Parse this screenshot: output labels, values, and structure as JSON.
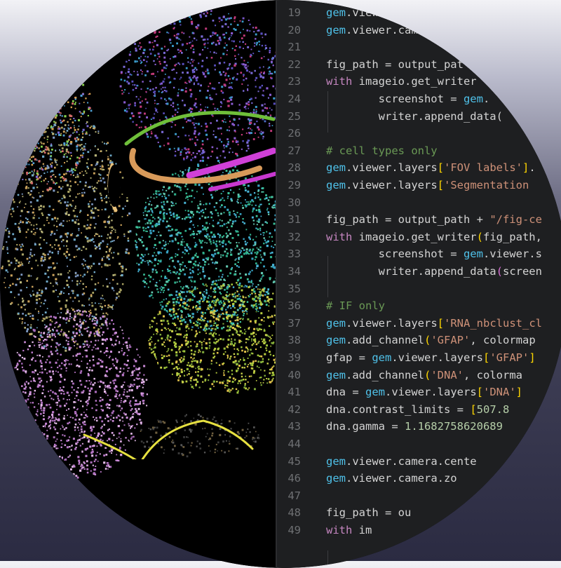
{
  "code_lines": [
    {
      "n": "19",
      "tokens": [
        {
          "t": "gem",
          "c": "tok-obj"
        },
        {
          "t": ".viewe",
          "c": "tok-plain"
        }
      ]
    },
    {
      "n": "20",
      "tokens": [
        {
          "t": "gem",
          "c": "tok-obj"
        },
        {
          "t": ".viewer.cam",
          "c": "tok-plain"
        }
      ]
    },
    {
      "n": "21",
      "tokens": []
    },
    {
      "n": "22",
      "tokens": [
        {
          "t": "fig_path",
          "c": "tok-plain"
        },
        {
          "t": " = ",
          "c": "tok-plain"
        },
        {
          "t": "output_pat",
          "c": "tok-plain"
        }
      ]
    },
    {
      "n": "23",
      "tokens": [
        {
          "t": "with",
          "c": "tok-kw"
        },
        {
          "t": " imageio.get_writer",
          "c": "tok-plain"
        }
      ]
    },
    {
      "n": "24",
      "tokens": [
        {
          "t": "        screenshot = ",
          "c": "tok-plain"
        },
        {
          "t": "gem",
          "c": "tok-obj"
        },
        {
          "t": ".",
          "c": "tok-plain"
        }
      ]
    },
    {
      "n": "25",
      "tokens": [
        {
          "t": "        writer.append_data(",
          "c": "tok-plain"
        }
      ]
    },
    {
      "n": "26",
      "tokens": []
    },
    {
      "n": "27",
      "tokens": [
        {
          "t": "# cell types only",
          "c": "tok-cmt"
        }
      ]
    },
    {
      "n": "28",
      "tokens": [
        {
          "t": "gem",
          "c": "tok-obj"
        },
        {
          "t": ".viewer.layers",
          "c": "tok-plain"
        },
        {
          "t": "[",
          "c": "tok-br"
        },
        {
          "t": "'FOV labels'",
          "c": "tok-str"
        },
        {
          "t": "]",
          "c": "tok-br"
        },
        {
          "t": ".",
          "c": "tok-plain"
        }
      ]
    },
    {
      "n": "29",
      "tokens": [
        {
          "t": "gem",
          "c": "tok-obj"
        },
        {
          "t": ".viewer.layers",
          "c": "tok-plain"
        },
        {
          "t": "[",
          "c": "tok-br"
        },
        {
          "t": "'Segmentation",
          "c": "tok-str"
        }
      ]
    },
    {
      "n": "30",
      "tokens": []
    },
    {
      "n": "31",
      "tokens": [
        {
          "t": "fig_path",
          "c": "tok-plain"
        },
        {
          "t": " = ",
          "c": "tok-plain"
        },
        {
          "t": "output_path + ",
          "c": "tok-plain"
        },
        {
          "t": "\"/fig-ce",
          "c": "tok-str"
        }
      ]
    },
    {
      "n": "32",
      "tokens": [
        {
          "t": "with",
          "c": "tok-kw"
        },
        {
          "t": " imageio.get_writer",
          "c": "tok-plain"
        },
        {
          "t": "(",
          "c": "tok-br"
        },
        {
          "t": "fig_path,",
          "c": "tok-plain"
        }
      ]
    },
    {
      "n": "33",
      "tokens": [
        {
          "t": "        screenshot = ",
          "c": "tok-plain"
        },
        {
          "t": "gem",
          "c": "tok-obj"
        },
        {
          "t": ".viewer.s",
          "c": "tok-plain"
        }
      ]
    },
    {
      "n": "34",
      "tokens": [
        {
          "t": "        writer.append_data",
          "c": "tok-plain"
        },
        {
          "t": "(",
          "c": "tok-br2"
        },
        {
          "t": "screen",
          "c": "tok-plain"
        }
      ]
    },
    {
      "n": "35",
      "tokens": []
    },
    {
      "n": "36",
      "tokens": [
        {
          "t": "# IF only",
          "c": "tok-cmt"
        }
      ]
    },
    {
      "n": "37",
      "tokens": [
        {
          "t": "gem",
          "c": "tok-obj"
        },
        {
          "t": ".viewer.layers",
          "c": "tok-plain"
        },
        {
          "t": "[",
          "c": "tok-br"
        },
        {
          "t": "'RNA_nbclust_cl",
          "c": "tok-str"
        }
      ]
    },
    {
      "n": "38",
      "tokens": [
        {
          "t": "gem",
          "c": "tok-obj"
        },
        {
          "t": ".add_channel",
          "c": "tok-plain"
        },
        {
          "t": "(",
          "c": "tok-br"
        },
        {
          "t": "'GFAP'",
          "c": "tok-str"
        },
        {
          "t": ", colormap",
          "c": "tok-plain"
        }
      ]
    },
    {
      "n": "39",
      "tokens": [
        {
          "t": "gfap",
          "c": "tok-plain"
        },
        {
          "t": " = ",
          "c": "tok-plain"
        },
        {
          "t": "gem",
          "c": "tok-obj"
        },
        {
          "t": ".viewer.layers",
          "c": "tok-plain"
        },
        {
          "t": "[",
          "c": "tok-br"
        },
        {
          "t": "'GFAP'",
          "c": "tok-str"
        },
        {
          "t": "]",
          "c": "tok-br"
        }
      ]
    },
    {
      "n": "40",
      "tokens": [
        {
          "t": "gem",
          "c": "tok-obj"
        },
        {
          "t": ".add_channel",
          "c": "tok-plain"
        },
        {
          "t": "(",
          "c": "tok-br"
        },
        {
          "t": "'DNA'",
          "c": "tok-str"
        },
        {
          "t": ", colorma",
          "c": "tok-plain"
        }
      ]
    },
    {
      "n": "41",
      "tokens": [
        {
          "t": "dna",
          "c": "tok-plain"
        },
        {
          "t": " = ",
          "c": "tok-plain"
        },
        {
          "t": "gem",
          "c": "tok-obj"
        },
        {
          "t": ".viewer.layers",
          "c": "tok-plain"
        },
        {
          "t": "[",
          "c": "tok-br"
        },
        {
          "t": "'DNA'",
          "c": "tok-str"
        },
        {
          "t": "]",
          "c": "tok-br"
        }
      ]
    },
    {
      "n": "42",
      "tokens": [
        {
          "t": "dna.contrast_limits = ",
          "c": "tok-plain"
        },
        {
          "t": "[",
          "c": "tok-br"
        },
        {
          "t": "507.8",
          "c": "tok-num"
        }
      ]
    },
    {
      "n": "43",
      "tokens": [
        {
          "t": "dna.gamma = ",
          "c": "tok-plain"
        },
        {
          "t": "1.1682758620689",
          "c": "tok-num"
        }
      ]
    },
    {
      "n": "44",
      "tokens": []
    },
    {
      "n": "45",
      "tokens": [
        {
          "t": "gem",
          "c": "tok-obj"
        },
        {
          "t": ".viewer.camera.cente",
          "c": "tok-plain"
        }
      ]
    },
    {
      "n": "46",
      "tokens": [
        {
          "t": "gem",
          "c": "tok-obj"
        },
        {
          "t": ".viewer.camera.zo",
          "c": "tok-plain"
        }
      ]
    },
    {
      "n": "47",
      "tokens": []
    },
    {
      "n": "48",
      "tokens": [
        {
          "t": "fig_path",
          "c": "tok-plain"
        },
        {
          "t": " = ",
          "c": "tok-plain"
        },
        {
          "t": "ou",
          "c": "tok-plain"
        }
      ]
    },
    {
      "n": "49",
      "tokens": [
        {
          "t": "with",
          "c": "tok-kw"
        },
        {
          "t": " im",
          "c": "tok-plain"
        }
      ]
    }
  ],
  "colors": {
    "editor_bg": "#1e1f21",
    "keyword": "#c586c0",
    "object": "#4fc1e9",
    "string": "#ce9178",
    "comment": "#6a9955",
    "number": "#b5cea8",
    "line_number": "#6e7073"
  }
}
